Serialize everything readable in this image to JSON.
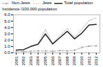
{
  "chart_data": {
    "type": "line",
    "x": [
      2001,
      2002,
      2003,
      2004,
      2005,
      2006,
      2007,
      2008,
      2009,
      2010,
      2011,
      2012
    ],
    "series": [
      {
        "name": "Non-Jews",
        "color": "#aaaaaa",
        "line_style": "dashed",
        "marker": "square",
        "values": [
          0.25,
          0.2,
          0.25,
          0.3,
          0.3,
          0.25,
          0.35,
          0.3,
          0.4,
          0.85,
          1.05,
          1.1
        ]
      },
      {
        "name": "Jews",
        "color": "#aaaaaa",
        "line_style": "dotted",
        "values": [
          0.45,
          0.5,
          1.1,
          1.5,
          3.7,
          1.5,
          2.7,
          3.85,
          2.4,
          3.7,
          5.1,
          5.5
        ]
      },
      {
        "name": "Total population",
        "color": "#222222",
        "line_style": "solid",
        "values": [
          0.45,
          0.5,
          1.0,
          1.35,
          3.0,
          1.4,
          2.4,
          3.4,
          2.2,
          3.1,
          4.4,
          4.5
        ]
      }
    ],
    "ylabel": "Incidence /100,000 population",
    "xlim": [
      2000.6,
      2012.5
    ],
    "xticks": [
      2001,
      2002,
      2003,
      2004,
      2005,
      2006,
      2007,
      2008,
      2009,
      2010,
      2011,
      2012
    ],
    "ylim": [
      0.0,
      6.0
    ],
    "yticks": [
      {
        "value": 0.0,
        "label": "0.0"
      },
      {
        "value": 1.0,
        "label": "1.0"
      },
      {
        "value": 2.0,
        "label": "2.0"
      },
      {
        "value": 3.0,
        "label": "3.0"
      },
      {
        "value": 4.0,
        "label": "4.0"
      },
      {
        "value": 5.0,
        "label": "5.0"
      },
      {
        "value": 6.0,
        "label": "6.0"
      }
    ],
    "legend": "upper left",
    "grid": false
  }
}
